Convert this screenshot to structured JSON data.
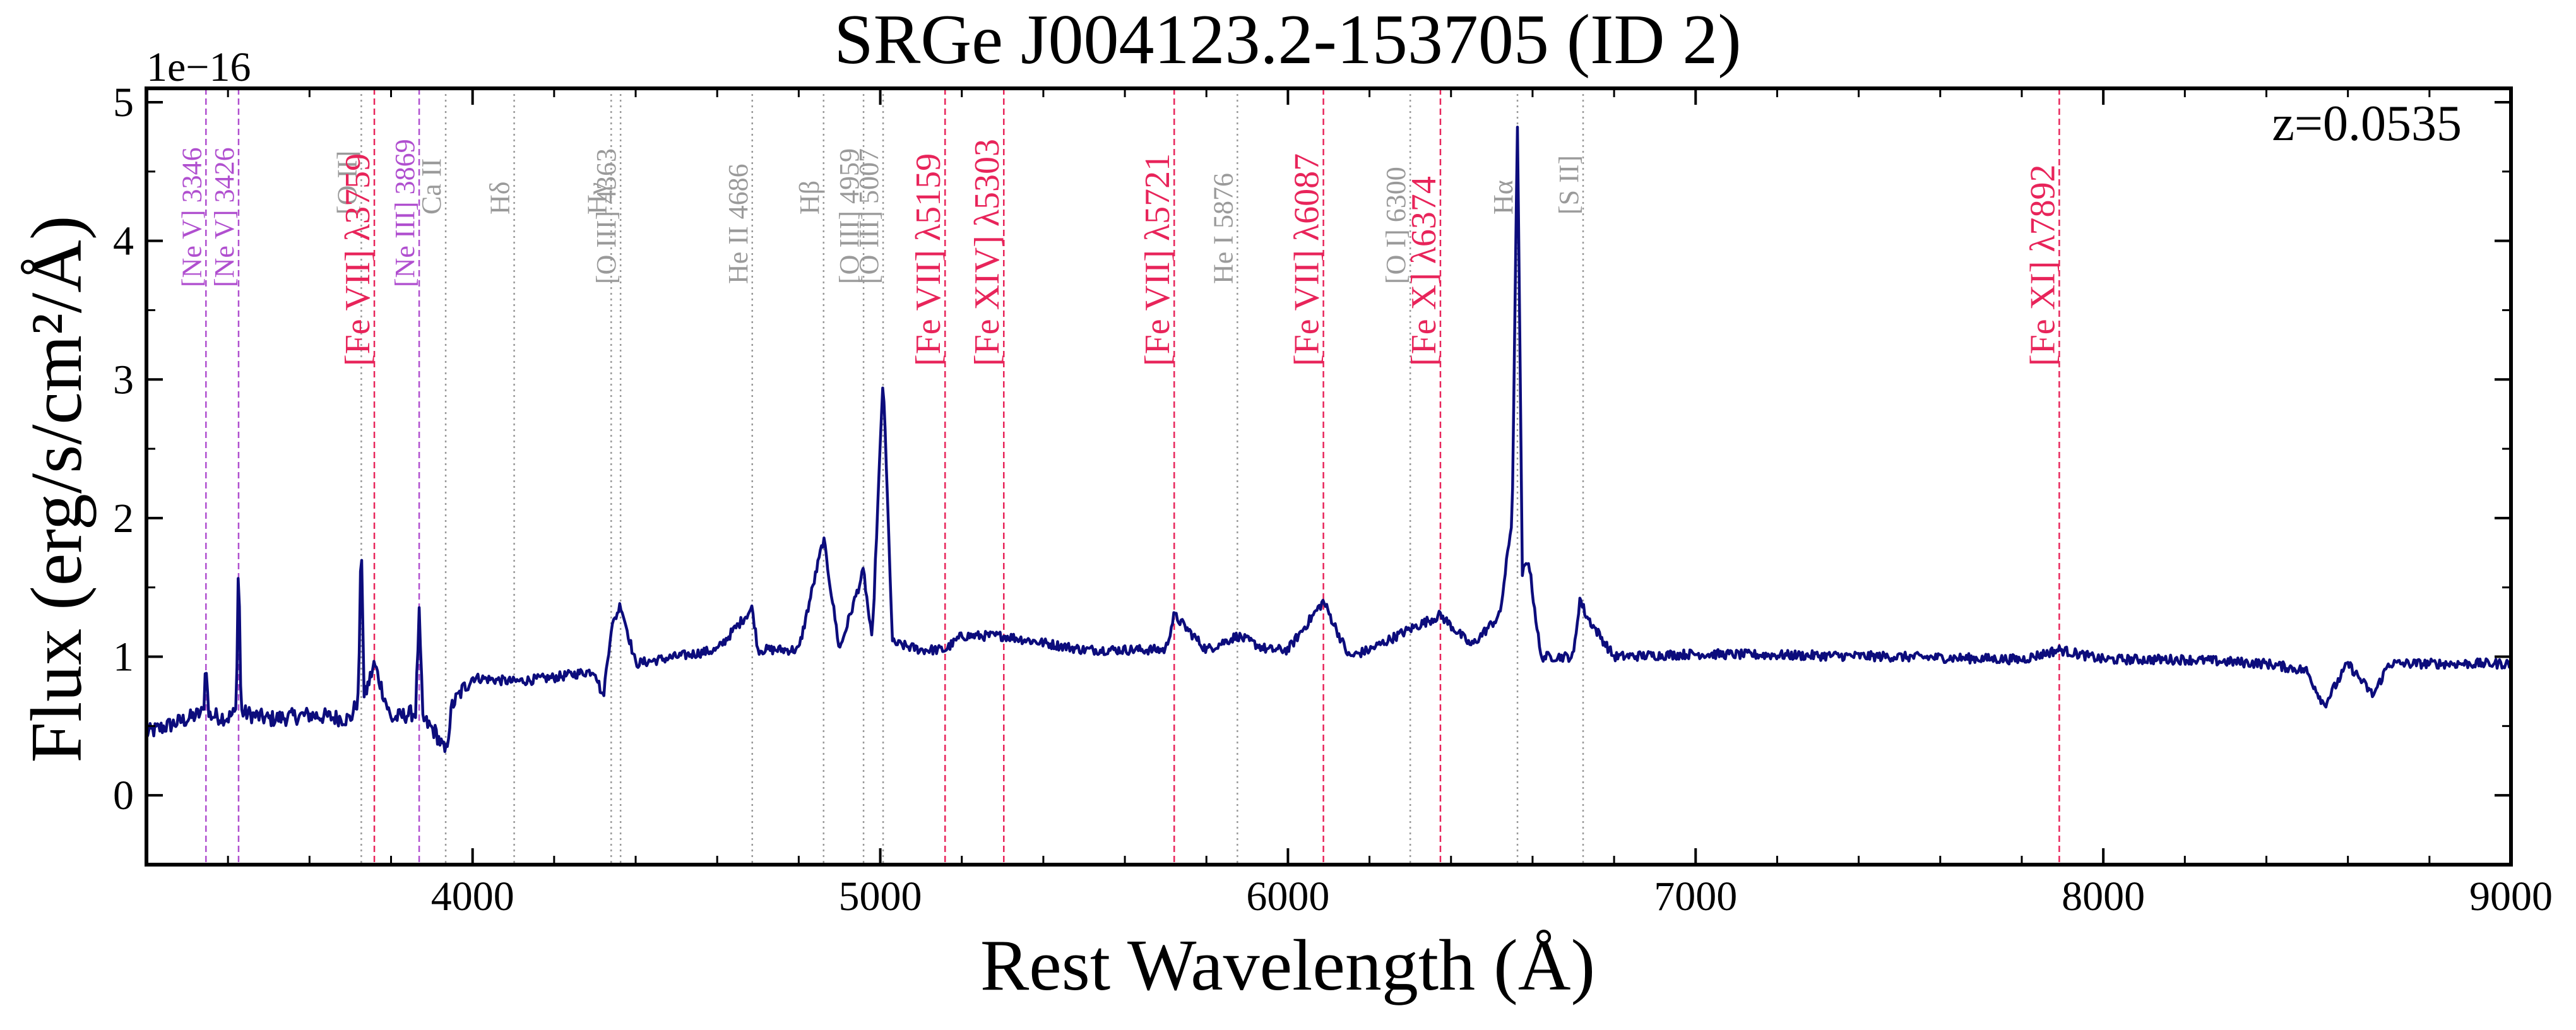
{
  "chart_data": {
    "type": "line",
    "title": "SRGe J004123.2-153705 (ID 2)",
    "xlabel": "Rest Wavelength (Å)",
    "ylabel": "Flux (erg/s/cm²/Å)",
    "y_multiplier": "1e−16",
    "annotation": "z=0.0535",
    "xlim": [
      3200,
      9000
    ],
    "ylim": [
      -0.5,
      5.1
    ],
    "x_ticks": [
      4000,
      5000,
      6000,
      7000,
      8000,
      9000
    ],
    "x_tick_labels": [
      "4000",
      "5000",
      "6000",
      "7000",
      "8000",
      "9000"
    ],
    "y_ticks": [
      0,
      1,
      2,
      3,
      4,
      5
    ],
    "y_tick_labels": [
      "0",
      "1",
      "2",
      "3",
      "4",
      "5"
    ],
    "colors": {
      "spectrum": "#0c0c7c",
      "coronal": "#e8245a",
      "neon": "#b04fcf",
      "standard": "#9a9a9a",
      "axes": "#000000"
    },
    "line_markers": [
      {
        "label": "[Ne V] 3346",
        "wavelength": 3346,
        "group": "neon"
      },
      {
        "label": "[Ne V] 3426",
        "wavelength": 3426,
        "group": "neon"
      },
      {
        "label": "[O II]",
        "wavelength": 3727,
        "group": "standard"
      },
      {
        "label": "[Fe VII] λ3759",
        "wavelength": 3759,
        "group": "coronal"
      },
      {
        "label": "[Ne III] 3869",
        "wavelength": 3869,
        "group": "neon"
      },
      {
        "label": "Ca II",
        "wavelength": 3934,
        "group": "standard"
      },
      {
        "label": "Hδ",
        "wavelength": 4102,
        "group": "standard"
      },
      {
        "label": "Hγ",
        "wavelength": 4340,
        "group": "standard"
      },
      {
        "label": "[O III] 4363",
        "wavelength": 4363,
        "group": "standard"
      },
      {
        "label": "He II 4686",
        "wavelength": 4686,
        "group": "standard"
      },
      {
        "label": "Hβ",
        "wavelength": 4861,
        "group": "standard"
      },
      {
        "label": "[O III] 4959",
        "wavelength": 4959,
        "group": "standard"
      },
      {
        "label": "[O III] 5007",
        "wavelength": 5007,
        "group": "standard"
      },
      {
        "label": "[Fe VII] λ5159",
        "wavelength": 5159,
        "group": "coronal"
      },
      {
        "label": "[Fe XIV] λ5303",
        "wavelength": 5303,
        "group": "coronal"
      },
      {
        "label": "[Fe VII] λ5721",
        "wavelength": 5721,
        "group": "coronal"
      },
      {
        "label": "He I 5876",
        "wavelength": 5876,
        "group": "standard"
      },
      {
        "label": "[Fe VII] λ6087",
        "wavelength": 6087,
        "group": "coronal"
      },
      {
        "label": "[O I] 6300",
        "wavelength": 6300,
        "group": "standard"
      },
      {
        "label": "[Fe X] λ6374",
        "wavelength": 6374,
        "group": "coronal"
      },
      {
        "label": "Hα",
        "wavelength": 6563,
        "group": "standard"
      },
      {
        "label": "[S II]",
        "wavelength": 6724,
        "group": "standard"
      },
      {
        "label": "[Fe XI] λ7892",
        "wavelength": 7892,
        "group": "coronal"
      }
    ],
    "series": [
      {
        "name": "spectrum",
        "x": [
          3200,
          3300,
          3340,
          3346,
          3352,
          3400,
          3420,
          3426,
          3432,
          3500,
          3600,
          3700,
          3720,
          3727,
          3734,
          3759,
          3800,
          3860,
          3869,
          3878,
          3910,
          3934,
          3950,
          3980,
          4000,
          4100,
          4200,
          4300,
          4320,
          4340,
          4363,
          4400,
          4500,
          4600,
          4686,
          4700,
          4800,
          4861,
          4900,
          4959,
          4980,
          5007,
          5030,
          5100,
          5159,
          5200,
          5303,
          5400,
          5500,
          5600,
          5700,
          5721,
          5800,
          5876,
          5950,
          6000,
          6087,
          6150,
          6200,
          6300,
          6374,
          6450,
          6520,
          6550,
          6563,
          6575,
          6590,
          6620,
          6700,
          6716,
          6731,
          6800,
          7000,
          7500,
          7800,
          7892,
          8000,
          8200,
          8400,
          8498,
          8542,
          8600,
          8662,
          8700,
          8800,
          9000
        ],
        "values": [
          0.45,
          0.55,
          0.6,
          1.0,
          0.58,
          0.56,
          0.6,
          1.75,
          0.6,
          0.55,
          0.58,
          0.55,
          0.7,
          1.9,
          0.7,
          0.95,
          0.55,
          0.6,
          1.3,
          0.55,
          0.45,
          0.3,
          0.65,
          0.78,
          0.85,
          0.82,
          0.85,
          0.9,
          0.7,
          1.2,
          1.38,
          0.95,
          1.0,
          1.05,
          1.35,
          1.05,
          1.05,
          1.85,
          1.05,
          1.62,
          1.1,
          3.02,
          1.1,
          1.05,
          1.05,
          1.15,
          1.15,
          1.1,
          1.05,
          1.05,
          1.05,
          1.3,
          1.05,
          1.15,
          1.05,
          1.05,
          1.4,
          1.0,
          1.05,
          1.2,
          1.3,
          1.08,
          1.3,
          2.0,
          4.85,
          1.6,
          1.7,
          1.0,
          1.0,
          1.42,
          1.3,
          1.0,
          1.02,
          1.0,
          0.98,
          1.05,
          0.98,
          0.98,
          0.95,
          0.9,
          0.65,
          0.95,
          0.72,
          0.95,
          0.95,
          0.95
        ]
      }
    ]
  }
}
